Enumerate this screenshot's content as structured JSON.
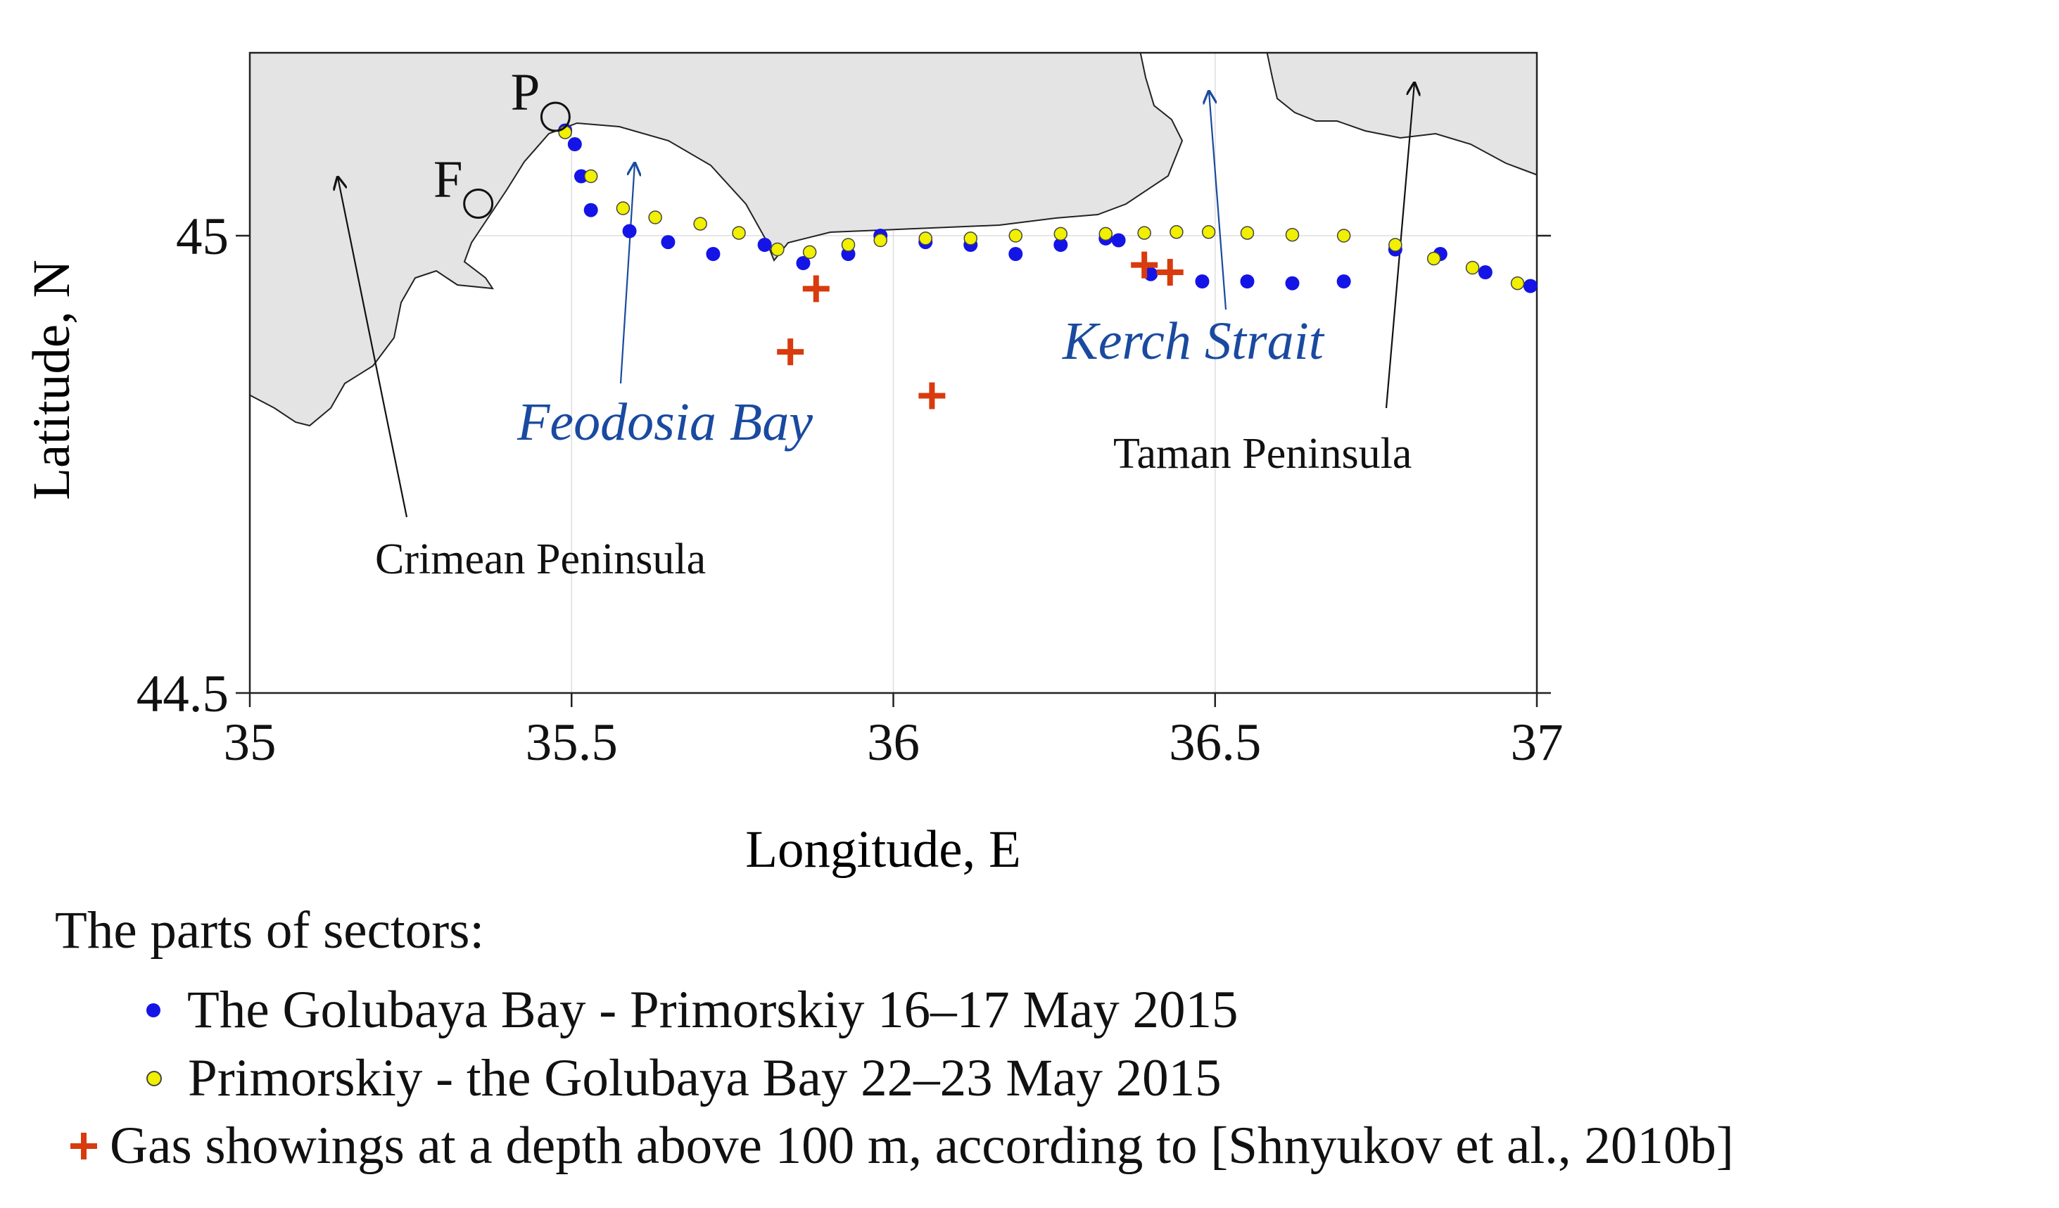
{
  "chart_data": {
    "type": "scatter",
    "xlabel": "Longitude, E",
    "ylabel": "Latitude, N",
    "xlim": [
      35,
      37
    ],
    "ylim": [
      44.5,
      45.2
    ],
    "xticks": [
      35,
      35.5,
      36,
      36.5,
      37
    ],
    "xtick_labels": [
      "35",
      "35.5",
      "36",
      "36.5",
      "37"
    ],
    "yticks": [
      44.5,
      45
    ],
    "ytick_labels": [
      "44.5",
      "45"
    ],
    "grid": true,
    "colors": {
      "land": "#e4e4e4",
      "series_blue": "#1414e6",
      "series_yellow": "#f0f000",
      "gas": "#d83b0e",
      "blue_label": "#1a4aa0"
    },
    "series": [
      {
        "name": "The Golubaya Bay - Primorskiy 16–17 May 2015",
        "color": "#1414e6",
        "points": [
          [
            35.49,
            45.115
          ],
          [
            35.505,
            45.1
          ],
          [
            35.515,
            45.065
          ],
          [
            35.53,
            45.028
          ],
          [
            35.59,
            45.005
          ],
          [
            35.65,
            44.993
          ],
          [
            35.72,
            44.98
          ],
          [
            35.8,
            44.99
          ],
          [
            35.86,
            44.97
          ],
          [
            35.93,
            44.98
          ],
          [
            35.98,
            45.0
          ],
          [
            36.05,
            44.993
          ],
          [
            36.12,
            44.99
          ],
          [
            36.19,
            44.98
          ],
          [
            36.26,
            44.99
          ],
          [
            36.33,
            44.997
          ],
          [
            36.35,
            44.995
          ],
          [
            36.4,
            44.958
          ],
          [
            36.48,
            44.95
          ],
          [
            36.55,
            44.95
          ],
          [
            36.62,
            44.948
          ],
          [
            36.7,
            44.95
          ],
          [
            36.78,
            44.985
          ],
          [
            36.85,
            44.98
          ],
          [
            36.92,
            44.96
          ],
          [
            36.99,
            44.945
          ]
        ]
      },
      {
        "name": "Primorskiy - the Golubaya Bay 22–23 May 2015",
        "color": "#f0f000",
        "points": [
          [
            35.49,
            45.113
          ],
          [
            35.53,
            45.065
          ],
          [
            35.58,
            45.03
          ],
          [
            35.63,
            45.02
          ],
          [
            35.7,
            45.013
          ],
          [
            35.76,
            45.003
          ],
          [
            35.82,
            44.985
          ],
          [
            35.87,
            44.982
          ],
          [
            35.93,
            44.99
          ],
          [
            35.98,
            44.995
          ],
          [
            36.05,
            44.997
          ],
          [
            36.12,
            44.997
          ],
          [
            36.19,
            45.0
          ],
          [
            36.26,
            45.002
          ],
          [
            36.33,
            45.002
          ],
          [
            36.39,
            45.003
          ],
          [
            36.44,
            45.004
          ],
          [
            36.49,
            45.004
          ],
          [
            36.55,
            45.003
          ],
          [
            36.62,
            45.001
          ],
          [
            36.7,
            45.0
          ],
          [
            36.78,
            44.99
          ],
          [
            36.84,
            44.975
          ],
          [
            36.9,
            44.965
          ],
          [
            36.97,
            44.948
          ]
        ]
      }
    ],
    "gas_showings": {
      "name": "Gas showings at a depth above 100 m, according to [Shnyukov et al., 2010b]",
      "points": [
        [
          35.88,
          44.942
        ],
        [
          35.84,
          44.873
        ],
        [
          36.06,
          44.825
        ],
        [
          36.39,
          44.968
        ],
        [
          36.43,
          44.96
        ]
      ]
    },
    "stations": [
      {
        "label": "P",
        "lon": 35.475,
        "lat": 45.13
      },
      {
        "label": "F",
        "lon": 35.355,
        "lat": 45.035
      }
    ],
    "annotations": [
      {
        "text": "Feodosia Bay",
        "style": "italic-blue"
      },
      {
        "text": "Kerch Strait",
        "style": "italic-blue"
      },
      {
        "text": "Taman Peninsula",
        "style": "plain"
      },
      {
        "text": "Crimean Peninsula",
        "style": "plain"
      }
    ]
  },
  "legend": {
    "title": "The parts of sectors:",
    "items": [
      "The Golubaya Bay - Primorskiy 16–17 May 2015",
      "Primorskiy - the Golubaya Bay 22–23 May 2015",
      "Gas showings at a depth above 100 m, according to [Shnyukov et al., 2010b]"
    ]
  }
}
